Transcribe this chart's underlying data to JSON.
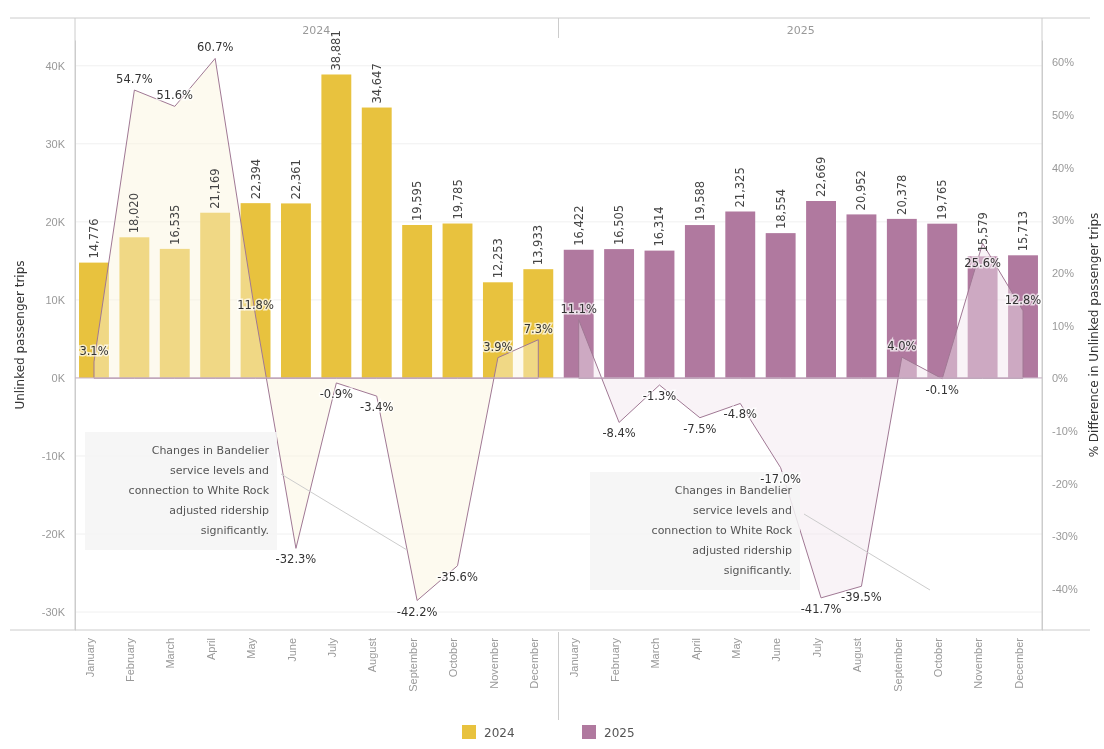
{
  "chart_data": {
    "type": "bar",
    "categories": [
      "January",
      "February",
      "March",
      "April",
      "May",
      "June",
      "July",
      "August",
      "September",
      "October",
      "November",
      "December",
      "January",
      "February",
      "March",
      "April",
      "May",
      "June",
      "July",
      "August",
      "September",
      "October",
      "November",
      "December"
    ],
    "series": [
      {
        "name": "2024",
        "color": "#e8c23e",
        "values": [
          14776,
          18020,
          16535,
          21169,
          22394,
          22361,
          38881,
          34647,
          19595,
          19785,
          12253,
          13933,
          null,
          null,
          null,
          null,
          null,
          null,
          null,
          null,
          null,
          null,
          null,
          null
        ],
        "value_labels": [
          "14,776",
          "18,020",
          "16,535",
          "21,169",
          "22,394",
          "22,361",
          "38,881",
          "34,647",
          "19,595",
          "19,785",
          "12,253",
          "13,933",
          null,
          null,
          null,
          null,
          null,
          null,
          null,
          null,
          null,
          null,
          null,
          null
        ]
      },
      {
        "name": "2025",
        "color": "#b0799f",
        "values": [
          null,
          null,
          null,
          null,
          null,
          null,
          null,
          null,
          null,
          null,
          null,
          null,
          16422,
          16505,
          16314,
          19588,
          21325,
          18554,
          22669,
          20952,
          20378,
          19765,
          15579,
          15713
        ],
        "value_labels": [
          null,
          null,
          null,
          null,
          null,
          null,
          null,
          null,
          null,
          null,
          null,
          null,
          "16,422",
          "16,505",
          "16,314",
          "19,588",
          "21,325",
          "18,554",
          "22,669",
          "20,952",
          "20,378",
          "19,765",
          "15,579",
          "15,713"
        ]
      },
      {
        "type": "area",
        "axis": "y2",
        "color": "#fbf3dc",
        "values": [
          3.1,
          54.7,
          51.6,
          60.7,
          11.8,
          -32.3,
          -0.9,
          -3.4,
          -42.2,
          -35.6,
          3.9,
          7.3,
          null,
          null,
          null,
          null,
          null,
          null,
          null,
          null,
          null,
          null,
          null,
          null
        ],
        "value_labels": [
          "3.1%",
          "54.7%",
          "51.6%",
          "60.7%",
          "11.8%",
          "-32.3%",
          "-0.9%",
          "-3.4%",
          "-42.2%",
          "-35.6%",
          "3.9%",
          "7.3%",
          null,
          null,
          null,
          null,
          null,
          null,
          null,
          null,
          null,
          null,
          null,
          null
        ]
      },
      {
        "type": "area",
        "axis": "y2",
        "color": "#f2e4ee",
        "values": [
          null,
          null,
          null,
          null,
          null,
          null,
          null,
          null,
          null,
          null,
          null,
          null,
          11.1,
          -8.4,
          -1.3,
          -7.5,
          -4.8,
          -17.0,
          -41.7,
          -39.5,
          4.0,
          -0.1,
          25.6,
          12.8
        ],
        "value_labels": [
          null,
          null,
          null,
          null,
          null,
          null,
          null,
          null,
          null,
          null,
          null,
          null,
          "11.1%",
          "-8.4%",
          "-1.3%",
          "-7.5%",
          "-4.8%",
          "-17.0%",
          "-41.7%",
          "-39.5%",
          "4.0%",
          "-0.1%",
          "25.6%",
          "12.8%"
        ]
      }
    ],
    "ylabel": "Unlinked passenger trips",
    "y2label": "% Difference in Unlinked passenger trips",
    "ylim": [
      -32300,
      43300
    ],
    "yticks": [
      {
        "value": -30000,
        "label": "-30K"
      },
      {
        "value": -20000,
        "label": "-20K"
      },
      {
        "value": -10000,
        "label": "-10K"
      },
      {
        "value": 0,
        "label": "0K"
      },
      {
        "value": 10000,
        "label": "10K"
      },
      {
        "value": 20000,
        "label": "20K"
      },
      {
        "value": 30000,
        "label": "30K"
      },
      {
        "value": 40000,
        "label": "40K"
      }
    ],
    "y2lim": [
      -47.8,
      64.2
    ],
    "y2ticks": [
      {
        "value": -40,
        "label": "-40%"
      },
      {
        "value": -30,
        "label": "-30%"
      },
      {
        "value": -20,
        "label": "-20%"
      },
      {
        "value": -10,
        "label": "-10%"
      },
      {
        "value": 0,
        "label": "0%"
      },
      {
        "value": 10,
        "label": "10%"
      },
      {
        "value": 20,
        "label": "20%"
      },
      {
        "value": 30,
        "label": "30%"
      },
      {
        "value": 40,
        "label": "40%"
      },
      {
        "value": 50,
        "label": "50%"
      },
      {
        "value": 60,
        "label": "60%"
      }
    ],
    "annotations": [
      "2024",
      "2025",
      "Changes in Bandelier service levels and connection to White Rock adjusted ridership significantly.",
      "Changes in Bandelier service levels and connection to White Rock adjusted ridership significantly."
    ],
    "grid": "y",
    "legend": "bottom"
  }
}
